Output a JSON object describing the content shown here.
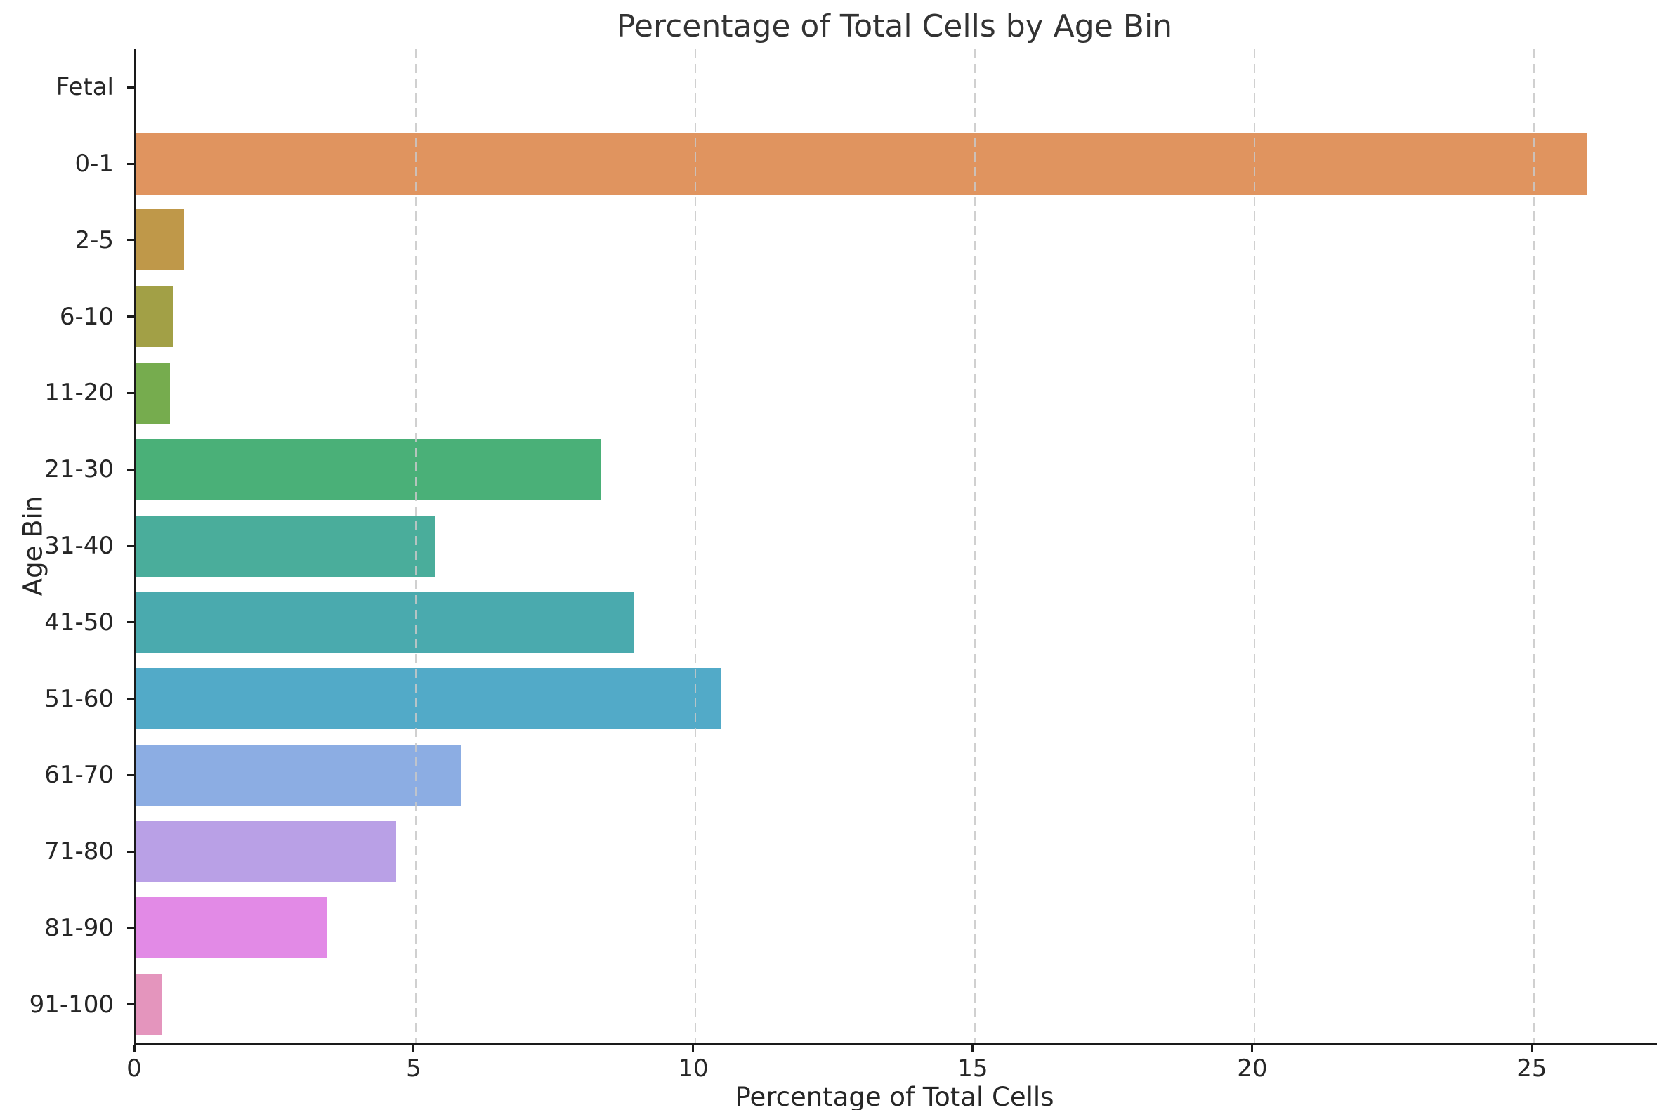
{
  "chart_data": {
    "type": "bar",
    "orientation": "horizontal",
    "title": "Percentage of Total Cells by Age Bin",
    "xlabel": "Percentage of Total Cells",
    "ylabel": "Age Bin",
    "categories": [
      "Fetal",
      "0-1",
      "2-5",
      "6-10",
      "11-20",
      "21-30",
      "31-40",
      "41-50",
      "51-60",
      "61-70",
      "71-80",
      "81-90",
      "91-100"
    ],
    "values": [
      0.0,
      25.95,
      0.85,
      0.65,
      0.6,
      8.3,
      5.35,
      8.9,
      10.45,
      5.8,
      4.65,
      3.4,
      0.45
    ],
    "bar_colors": [
      "#f77189",
      "#e0945f",
      "#bf9849",
      "#a2a046",
      "#76ac4e",
      "#4ab078",
      "#4aad9b",
      "#4aaaae",
      "#52aac8",
      "#8cade3",
      "#b9a0e6",
      "#e28ae6",
      "#e495bd"
    ],
    "xlim": [
      0,
      27.2
    ],
    "xticks": [
      0,
      5,
      10,
      15,
      20,
      25
    ],
    "xtick_labels": [
      "0",
      "5",
      "10",
      "15",
      "20",
      "25"
    ],
    "grid": "vertical dashed gridlines at xticks, light gray",
    "legend": "none",
    "style": {
      "grid_color": "#cccccc",
      "spine_color": "#1a1a1a",
      "title_color": "#333333",
      "tick_label_color": "#262626",
      "background_color": "#ffffff"
    }
  }
}
